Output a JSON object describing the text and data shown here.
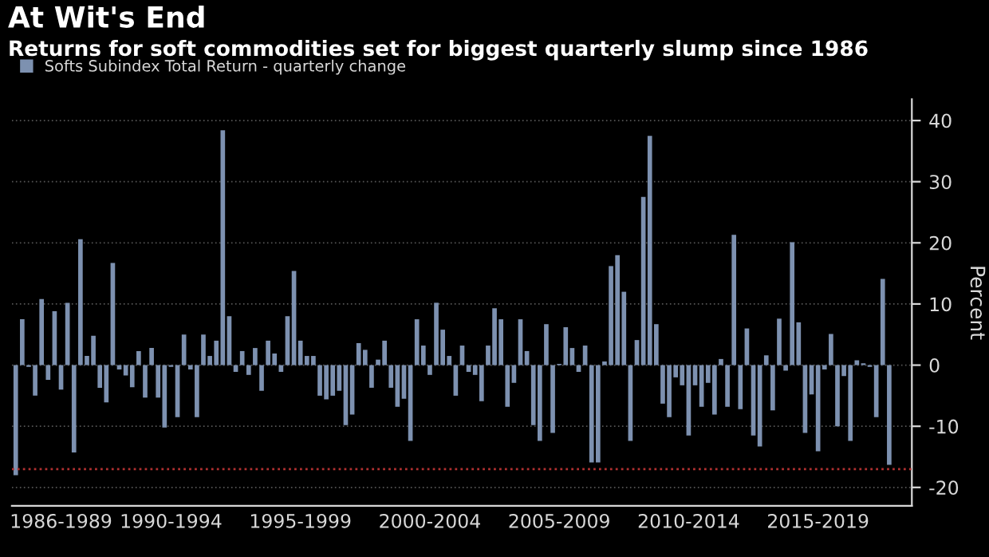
{
  "chart_data": {
    "type": "bar",
    "title": "At Wit's End",
    "subtitle": "Returns for soft commodities set for biggest quarterly slump since 1986",
    "ylabel": "Percent",
    "series": [
      {
        "name": "Softs Subindex Total Return - quarterly change",
        "color": "#7d91b0",
        "values": [
          -18,
          7.5,
          -0.3,
          -5,
          10.8,
          -2.4,
          8.8,
          -4,
          10.2,
          -14.3,
          20.6,
          1.5,
          4.8,
          -3.7,
          -6.1,
          16.7,
          -0.7,
          -1.7,
          -3.6,
          2.3,
          -5.3,
          2.8,
          -5.3,
          -10.2,
          -0.3,
          -8.5,
          5,
          -0.7,
          -8.5,
          5,
          1.5,
          4,
          38.4,
          8,
          -1.1,
          2.3,
          -1.6,
          2.8,
          -4.2,
          4,
          1.9,
          -1.1,
          8,
          15.4,
          4,
          1.5,
          1.5,
          -5,
          -5.6,
          -5,
          -4.2,
          -9.8,
          -8.1,
          3.6,
          2.5,
          -3.7,
          0.9,
          4,
          -3.7,
          -6.8,
          -5.5,
          -12.4,
          7.5,
          3.2,
          -1.6,
          10.2,
          5.8,
          1.5,
          -5,
          3.2,
          -1.1,
          -1.6,
          -5.9,
          3.2,
          9.3,
          7.5,
          -6.8,
          -2.9,
          7.5,
          2.3,
          -9.8,
          -12.4,
          6.7,
          -11.1,
          0.2,
          6.2,
          2.8,
          -1.1,
          3.2,
          -15.9,
          -15.9,
          0.6,
          16.2,
          18,
          12,
          -12.4,
          4.1,
          27.5,
          37.5,
          6.7,
          -6.3,
          -8.5,
          -2,
          -3.3,
          -11.5,
          -3.3,
          -6.8,
          -2.9,
          -8.1,
          1,
          -6.8,
          21.3,
          -7.2,
          6,
          -11.5,
          -13.3,
          1.6,
          -7.4,
          7.6,
          -0.9,
          20.1,
          7,
          -11.1,
          -4.8,
          -14.1,
          -0.7,
          5.1,
          -10,
          -1.8,
          -12.4,
          0.8,
          0.3,
          -0.3,
          -8.5,
          14.1,
          -16.3
        ]
      }
    ],
    "categories": [
      null,
      null,
      null,
      null,
      null,
      null,
      null,
      "1986-1989",
      null,
      null,
      null,
      null,
      null,
      null,
      null,
      null,
      null,
      null,
      null,
      null,
      null,
      null,
      null,
      null,
      "1990-1994",
      null,
      null,
      null,
      null,
      null,
      null,
      null,
      null,
      null,
      null,
      null,
      null,
      null,
      null,
      null,
      null,
      null,
      null,
      null,
      "1995-1999",
      null,
      null,
      null,
      null,
      null,
      null,
      null,
      null,
      null,
      null,
      null,
      null,
      null,
      null,
      null,
      null,
      null,
      null,
      null,
      "2000-2004",
      null,
      null,
      null,
      null,
      null,
      null,
      null,
      null,
      null,
      null,
      null,
      null,
      null,
      null,
      null,
      null,
      null,
      null,
      null,
      "2005-2009",
      null,
      null,
      null,
      null,
      null,
      null,
      null,
      null,
      null,
      null,
      null,
      null,
      null,
      null,
      null,
      null,
      null,
      null,
      null,
      "2010-2014",
      null,
      null,
      null,
      null,
      null,
      null,
      null,
      null,
      null,
      null,
      null,
      null,
      null,
      null,
      null,
      null,
      null,
      null,
      null,
      "2015-2019",
      null,
      null,
      null,
      null,
      null,
      null,
      null,
      null,
      null,
      null,
      null
    ],
    "ylim": [
      -23,
      43.5
    ],
    "yticks": [
      -20,
      -10,
      0,
      10,
      20,
      30,
      40
    ],
    "ref_lines": [
      {
        "axis": "y",
        "value": -17,
        "color": "#b03030",
        "line_style": "dotted"
      }
    ],
    "grid": "y",
    "legend": "top left"
  }
}
